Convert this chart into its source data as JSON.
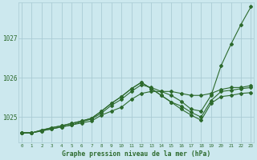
{
  "xlabel": "Graphe pression niveau de la mer (hPa)",
  "background_color": "#cce8ee",
  "grid_color": "#aaccd4",
  "line_color": "#2d6a2d",
  "x_ticks": [
    0,
    1,
    2,
    3,
    4,
    5,
    6,
    7,
    8,
    9,
    10,
    11,
    12,
    13,
    14,
    15,
    16,
    17,
    18,
    19,
    20,
    21,
    22,
    23
  ],
  "ylim": [
    1024.35,
    1027.9
  ],
  "y_ticks": [
    1025,
    1026,
    1027
  ],
  "figsize": [
    3.2,
    2.0
  ],
  "series": [
    [
      1024.6,
      1024.6,
      1024.65,
      1024.7,
      1024.75,
      1024.8,
      1024.85,
      1024.9,
      1025.05,
      1025.15,
      1025.25,
      1025.45,
      1025.6,
      1025.65,
      1025.65,
      1025.65,
      1025.6,
      1025.55,
      1025.55,
      1025.6,
      1025.7,
      1025.75,
      1025.75,
      1025.8
    ],
    [
      1024.6,
      1024.6,
      1024.65,
      1024.7,
      1024.75,
      1024.8,
      1024.88,
      1024.95,
      1025.1,
      1025.3,
      1025.45,
      1025.65,
      1025.82,
      1025.75,
      1025.65,
      1025.55,
      1025.4,
      1025.2,
      1025.15,
      1025.55,
      1026.3,
      1026.85,
      1027.35,
      1027.8
    ],
    [
      1024.6,
      1024.6,
      1024.67,
      1024.73,
      1024.78,
      1024.84,
      1024.9,
      1024.97,
      1025.15,
      1025.35,
      1025.52,
      1025.72,
      1025.88,
      1025.72,
      1025.55,
      1025.38,
      1025.28,
      1025.12,
      1025.0,
      1025.42,
      1025.65,
      1025.68,
      1025.72,
      1025.75
    ],
    [
      1024.6,
      1024.6,
      1024.67,
      1024.73,
      1024.78,
      1024.84,
      1024.9,
      1024.97,
      1025.15,
      1025.35,
      1025.52,
      1025.72,
      1025.88,
      1025.72,
      1025.55,
      1025.38,
      1025.2,
      1025.05,
      1024.92,
      1025.35,
      1025.52,
      1025.55,
      1025.6,
      1025.62
    ]
  ]
}
